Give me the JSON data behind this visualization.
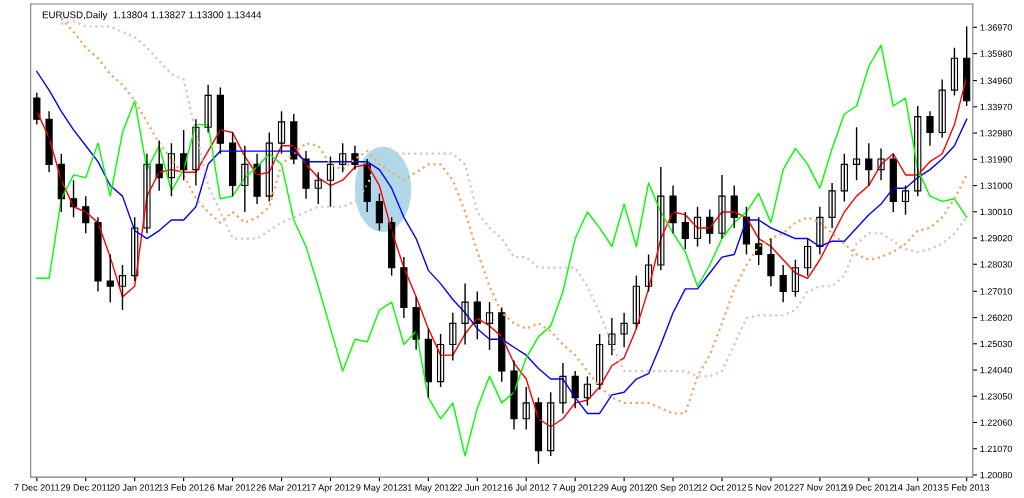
{
  "chart_data": {
    "type": "candlestick",
    "title": "EURUSD,Daily  1.13804 1.13827 1.13300 1.13444",
    "categories": [
      "7 Dec 2011",
      null,
      null,
      null,
      "29 Dec 2011",
      null,
      null,
      null,
      "20 Jan 2012",
      null,
      null,
      null,
      "13 Feb 2012",
      null,
      null,
      null,
      "6 Mar 2012",
      null,
      null,
      null,
      "26 Mar 2012",
      null,
      null,
      null,
      "17 Apr 2012",
      null,
      null,
      null,
      "9 May 2012",
      null,
      null,
      null,
      "31 May 2012",
      null,
      null,
      null,
      "22 Jun 2012",
      null,
      null,
      null,
      "16 Jul 2012",
      null,
      null,
      null,
      "7 Aug 2012",
      null,
      null,
      null,
      "29 Aug 2012",
      null,
      null,
      null,
      "20 Sep 2012",
      null,
      null,
      null,
      "12 Oct 2012",
      null,
      null,
      null,
      "5 Nov 2012",
      null,
      null,
      null,
      "27 Nov 2012",
      null,
      null,
      null,
      "19 Dec 2012",
      null,
      null,
      null,
      "14 Jan 2013",
      null,
      null,
      null,
      "5 Feb 2013"
    ],
    "color": "#000000",
    "ohlc": [
      [
        1.343,
        1.345,
        1.333,
        1.335
      ],
      [
        1.335,
        1.338,
        1.315,
        1.318
      ],
      [
        1.318,
        1.322,
        1.3,
        1.305
      ],
      [
        1.305,
        1.312,
        1.298,
        1.302
      ],
      [
        1.302,
        1.306,
        1.292,
        1.296
      ],
      [
        1.296,
        1.298,
        1.27,
        1.274
      ],
      [
        1.274,
        1.284,
        1.266,
        1.272
      ],
      [
        1.272,
        1.28,
        1.263,
        1.276
      ],
      [
        1.276,
        1.298,
        1.274,
        1.294
      ],
      [
        1.294,
        1.322,
        1.292,
        1.318
      ],
      [
        1.318,
        1.327,
        1.308,
        1.313
      ],
      [
        1.313,
        1.326,
        1.306,
        1.322
      ],
      [
        1.322,
        1.331,
        1.312,
        1.316
      ],
      [
        1.316,
        1.335,
        1.31,
        1.332
      ],
      [
        1.332,
        1.348,
        1.33,
        1.344
      ],
      [
        1.344,
        1.347,
        1.322,
        1.326
      ],
      [
        1.326,
        1.33,
        1.306,
        1.31
      ],
      [
        1.31,
        1.325,
        1.3,
        1.318
      ],
      [
        1.318,
        1.322,
        1.303,
        1.306
      ],
      [
        1.306,
        1.33,
        1.304,
        1.326
      ],
      [
        1.326,
        1.338,
        1.322,
        1.334
      ],
      [
        1.334,
        1.337,
        1.318,
        1.32
      ],
      [
        1.32,
        1.323,
        1.305,
        1.309
      ],
      [
        1.309,
        1.315,
        1.303,
        1.312
      ],
      [
        1.312,
        1.321,
        1.302,
        1.318
      ],
      [
        1.318,
        1.326,
        1.315,
        1.322
      ],
      [
        1.322,
        1.325,
        1.316,
        1.318
      ],
      [
        1.318,
        1.32,
        1.3,
        1.304
      ],
      [
        1.304,
        1.307,
        1.293,
        1.296
      ],
      [
        1.296,
        1.298,
        1.276,
        1.279
      ],
      [
        1.279,
        1.283,
        1.26,
        1.264
      ],
      [
        1.264,
        1.268,
        1.248,
        1.252
      ],
      [
        1.252,
        1.256,
        1.23,
        1.236
      ],
      [
        1.236,
        1.254,
        1.234,
        1.25
      ],
      [
        1.25,
        1.262,
        1.244,
        1.258
      ],
      [
        1.258,
        1.273,
        1.25,
        1.266
      ],
      [
        1.266,
        1.27,
        1.252,
        1.258
      ],
      [
        1.258,
        1.266,
        1.248,
        1.262
      ],
      [
        1.262,
        1.264,
        1.236,
        1.24
      ],
      [
        1.24,
        1.244,
        1.218,
        1.222
      ],
      [
        1.222,
        1.234,
        1.218,
        1.228
      ],
      [
        1.228,
        1.23,
        1.205,
        1.21
      ],
      [
        1.21,
        1.232,
        1.208,
        1.228
      ],
      [
        1.228,
        1.243,
        1.224,
        1.238
      ],
      [
        1.238,
        1.24,
        1.226,
        1.23
      ],
      [
        1.23,
        1.238,
        1.227,
        1.235
      ],
      [
        1.235,
        1.254,
        1.233,
        1.25
      ],
      [
        1.25,
        1.26,
        1.246,
        1.254
      ],
      [
        1.254,
        1.262,
        1.249,
        1.258
      ],
      [
        1.258,
        1.276,
        1.256,
        1.272
      ],
      [
        1.272,
        1.284,
        1.27,
        1.28
      ],
      [
        1.28,
        1.317,
        1.278,
        1.306
      ],
      [
        1.306,
        1.31,
        1.292,
        1.296
      ],
      [
        1.296,
        1.3,
        1.286,
        1.29
      ],
      [
        1.29,
        1.302,
        1.287,
        1.298
      ],
      [
        1.298,
        1.301,
        1.288,
        1.292
      ],
      [
        1.292,
        1.314,
        1.29,
        1.306
      ],
      [
        1.306,
        1.31,
        1.294,
        1.298
      ],
      [
        1.298,
        1.302,
        1.284,
        1.288
      ],
      [
        1.288,
        1.298,
        1.28,
        1.284
      ],
      [
        1.284,
        1.29,
        1.272,
        1.276
      ],
      [
        1.276,
        1.28,
        1.266,
        1.27
      ],
      [
        1.27,
        1.282,
        1.268,
        1.279
      ],
      [
        1.279,
        1.29,
        1.276,
        1.287
      ],
      [
        1.287,
        1.302,
        1.284,
        1.298
      ],
      [
        1.298,
        1.311,
        1.294,
        1.308
      ],
      [
        1.308,
        1.322,
        1.304,
        1.318
      ],
      [
        1.318,
        1.332,
        1.312,
        1.32
      ],
      [
        1.32,
        1.326,
        1.31,
        1.316
      ],
      [
        1.316,
        1.324,
        1.312,
        1.32
      ],
      [
        1.32,
        1.322,
        1.3,
        1.304
      ],
      [
        1.304,
        1.31,
        1.299,
        1.308
      ],
      [
        1.308,
        1.34,
        1.306,
        1.336
      ],
      [
        1.336,
        1.338,
        1.325,
        1.33
      ],
      [
        1.33,
        1.35,
        1.328,
        1.346
      ],
      [
        1.346,
        1.362,
        1.344,
        1.358
      ],
      [
        1.358,
        1.37,
        1.34,
        1.342
      ]
    ],
    "series": [
      {
        "type": "line",
        "color": "#ff0000",
        "line_style": "solid",
        "values": [
          1.338,
          1.328,
          1.312,
          1.302,
          1.3,
          1.296,
          1.283,
          1.268,
          1.272,
          1.306,
          1.315,
          1.316,
          1.315,
          1.315,
          1.323,
          1.331,
          1.33,
          1.321,
          1.314,
          1.315,
          1.325,
          1.325,
          1.318,
          1.313,
          1.31,
          1.312,
          1.317,
          1.318,
          1.31,
          1.293,
          1.279,
          1.268,
          1.256,
          1.246,
          1.246,
          1.254,
          1.26,
          1.257,
          1.253,
          1.243,
          1.237,
          1.222,
          1.219,
          1.222,
          1.228,
          1.229,
          1.234,
          1.242,
          1.245,
          1.256,
          1.271,
          1.29,
          1.3,
          1.299,
          1.294,
          1.294,
          1.3,
          1.3,
          1.298,
          1.29,
          1.287,
          1.282,
          1.277,
          1.275,
          1.282,
          1.291,
          1.3,
          1.306,
          1.31,
          1.318,
          1.322,
          1.314,
          1.314,
          1.319,
          1.322,
          1.333,
          1.351
        ]
      },
      {
        "type": "line",
        "color": "#0000ff",
        "line_style": "solid",
        "values": [
          1.353,
          1.346,
          1.338,
          1.331,
          1.325,
          1.319,
          1.31,
          1.306,
          1.293,
          1.29,
          1.293,
          1.297,
          1.297,
          1.302,
          1.318,
          1.323,
          1.323,
          1.323,
          1.323,
          1.323,
          1.323,
          1.323,
          1.319,
          1.319,
          1.319,
          1.319,
          1.319,
          1.319,
          1.316,
          1.309,
          1.298,
          1.29,
          1.278,
          1.273,
          1.267,
          1.262,
          1.256,
          1.252,
          1.252,
          1.249,
          1.246,
          1.241,
          1.237,
          1.237,
          1.23,
          1.224,
          1.224,
          1.231,
          1.232,
          1.237,
          1.239,
          1.25,
          1.262,
          1.271,
          1.271,
          1.277,
          1.283,
          1.284,
          1.297,
          1.297,
          1.294,
          1.292,
          1.29,
          1.29,
          1.287,
          1.289,
          1.289,
          1.294,
          1.299,
          1.303,
          1.309,
          1.309,
          1.313,
          1.316,
          1.32,
          1.325,
          1.335
        ]
      },
      {
        "type": "line",
        "color": "#00ff00",
        "line_style": "solid",
        "values": [
          1.275,
          1.275,
          1.305,
          1.314,
          1.313,
          1.326,
          1.306,
          1.33,
          1.342,
          1.316,
          1.325,
          1.308,
          1.316,
          1.333,
          1.333,
          1.305,
          1.306,
          1.313,
          1.317,
          1.322,
          1.318,
          1.297,
          1.287,
          1.272,
          1.256,
          1.24,
          1.252,
          1.251,
          1.263,
          1.266,
          1.25,
          1.255,
          1.23,
          1.222,
          1.228,
          1.208,
          1.226,
          1.238,
          1.228,
          1.232,
          1.245,
          1.253,
          1.257,
          1.27,
          1.29,
          1.3,
          1.294,
          1.287,
          1.303,
          1.287,
          1.311,
          1.3,
          1.292,
          1.285,
          1.272,
          1.28,
          1.29,
          1.296,
          1.3,
          1.307,
          1.296,
          1.316,
          1.324,
          1.318,
          1.309,
          1.324,
          1.337,
          1.34,
          1.355,
          1.363,
          1.34,
          1.343,
          1.316,
          1.306,
          1.304,
          1.305,
          1.298
        ]
      },
      {
        "type": "line",
        "color": "#f4a460",
        "line_style": "dotted",
        "values": [
          null,
          null,
          1.373,
          1.368,
          1.362,
          1.358,
          1.352,
          1.348,
          1.342,
          1.334,
          1.326,
          1.32,
          1.314,
          1.305,
          1.3,
          1.296,
          1.3,
          1.296,
          1.298,
          1.302,
          1.318,
          1.322,
          1.326,
          1.325,
          1.318,
          1.316,
          1.32,
          1.323,
          1.318,
          1.315,
          1.312,
          1.315,
          1.318,
          1.318,
          1.312,
          1.3,
          1.285,
          1.272,
          1.262,
          1.258,
          1.256,
          1.258,
          1.255,
          1.25,
          1.246,
          1.24,
          1.234,
          1.23,
          1.228,
          1.228,
          1.228,
          1.226,
          1.224,
          1.224,
          1.238,
          1.246,
          1.258,
          1.271,
          1.28,
          1.287,
          1.29,
          1.292,
          1.296,
          1.298,
          1.296,
          1.292,
          1.288,
          1.284,
          1.282,
          1.283,
          1.285,
          1.288,
          1.293,
          1.294,
          1.298,
          1.305,
          1.314
        ]
      },
      {
        "type": "line",
        "color": "#d8bfd8",
        "line_style": "dotted",
        "values": [
          null,
          null,
          1.371,
          1.372,
          1.37,
          1.37,
          1.37,
          1.368,
          1.366,
          1.362,
          1.357,
          1.352,
          1.35,
          1.33,
          1.31,
          1.3,
          1.29,
          1.29,
          1.29,
          1.293,
          1.296,
          1.298,
          1.3,
          1.302,
          1.302,
          1.302,
          1.304,
          1.31,
          1.322,
          1.322,
          1.322,
          1.322,
          1.322,
          1.322,
          1.322,
          1.318,
          1.3,
          1.294,
          1.29,
          1.283,
          1.283,
          1.279,
          1.279,
          1.279,
          1.279,
          1.272,
          1.262,
          1.25,
          1.24,
          1.24,
          1.24,
          1.24,
          1.24,
          1.24,
          1.238,
          1.238,
          1.24,
          1.25,
          1.26,
          1.261,
          1.261,
          1.261,
          1.263,
          1.27,
          1.272,
          1.272,
          1.276,
          1.288,
          1.292,
          1.292,
          1.289,
          1.286,
          1.285,
          1.286,
          1.288,
          1.292,
          1.298
        ]
      }
    ],
    "ylim": [
      1.2,
      1.3785
    ],
    "yticks": [
      {
        "value": 1.2008,
        "label": "1.20080"
      },
      {
        "value": 1.2107,
        "label": "1.21070"
      },
      {
        "value": 1.2206,
        "label": "1.22060"
      },
      {
        "value": 1.2305,
        "label": "1.23050"
      },
      {
        "value": 1.2404,
        "label": "1.24040"
      },
      {
        "value": 1.2503,
        "label": "1.25030"
      },
      {
        "value": 1.2602,
        "label": "1.26020"
      },
      {
        "value": 1.2701,
        "label": "1.27010"
      },
      {
        "value": 1.2803,
        "label": "1.28030"
      },
      {
        "value": 1.2902,
        "label": "1.29020"
      },
      {
        "value": 1.3001,
        "label": "1.30010"
      },
      {
        "value": 1.31,
        "label": "1.31000"
      },
      {
        "value": 1.3199,
        "label": "1.31990"
      },
      {
        "value": 1.3298,
        "label": "1.32980"
      },
      {
        "value": 1.3397,
        "label": "1.33970"
      },
      {
        "value": 1.3496,
        "label": "1.34960"
      },
      {
        "value": 1.3598,
        "label": "1.35980"
      },
      {
        "value": 1.3697,
        "label": "1.36970"
      }
    ]
  }
}
